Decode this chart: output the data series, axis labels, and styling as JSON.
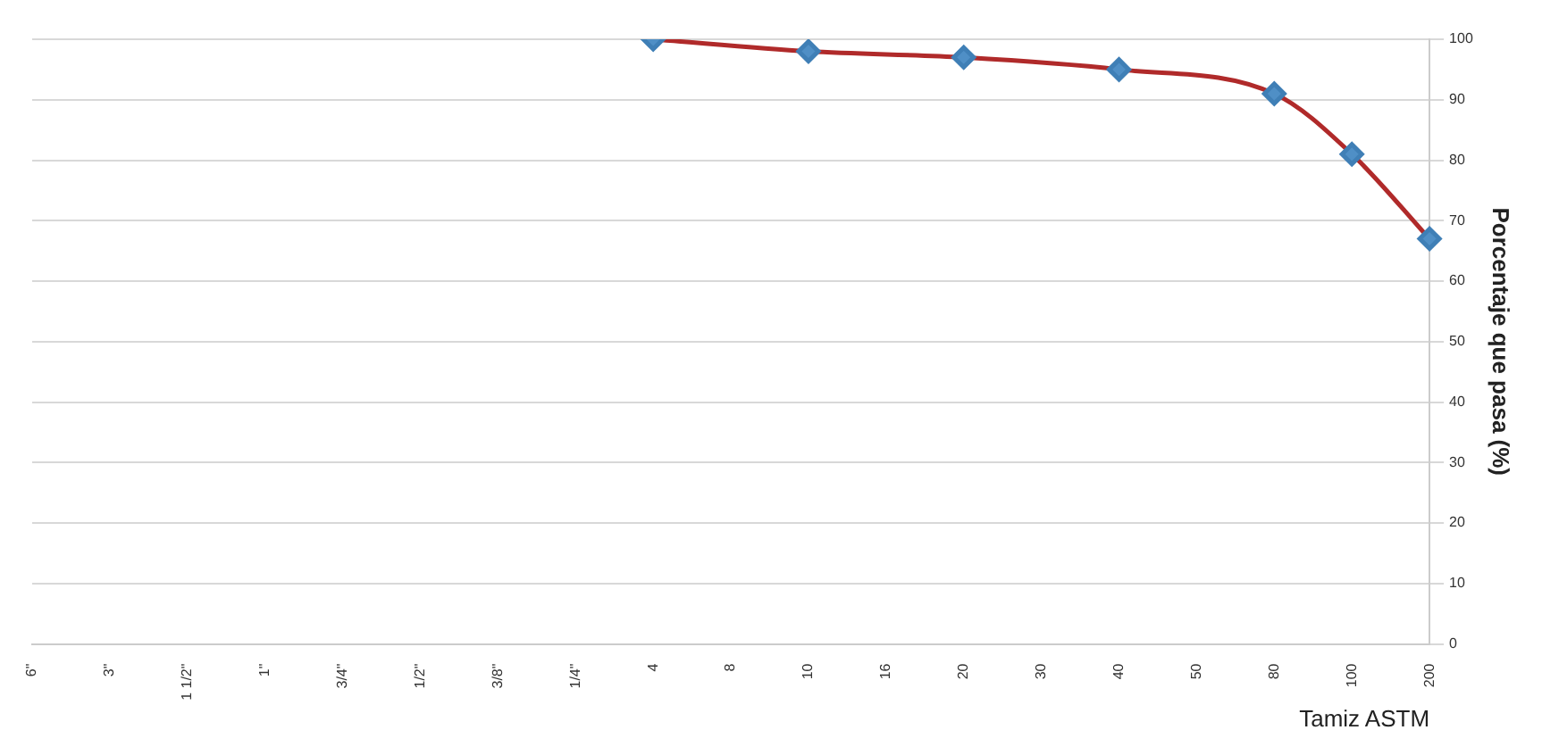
{
  "chart_data": {
    "type": "line",
    "xlabel": "Tamiz ASTM",
    "ylabel": "Porcentaje que pasa (%)",
    "categories": [
      "6\"",
      "3\"",
      "1 1/2\"",
      "1\"",
      "3/4\"",
      "1/2\"",
      "3/8\"",
      "1/4\"",
      "4",
      "8",
      "10",
      "16",
      "20",
      "30",
      "40",
      "50",
      "80",
      "100",
      "200"
    ],
    "ylim": [
      0,
      100
    ],
    "yticks": [
      0,
      10,
      20,
      30,
      40,
      50,
      60,
      70,
      80,
      90,
      100
    ],
    "grid": "y",
    "marker": "diamond",
    "line_style": "solid",
    "series": [
      {
        "color": "#b02a2a",
        "values": [
          null,
          null,
          null,
          null,
          null,
          null,
          null,
          null,
          100,
          null,
          98,
          null,
          97,
          null,
          95,
          null,
          91,
          81,
          67
        ]
      }
    ]
  }
}
